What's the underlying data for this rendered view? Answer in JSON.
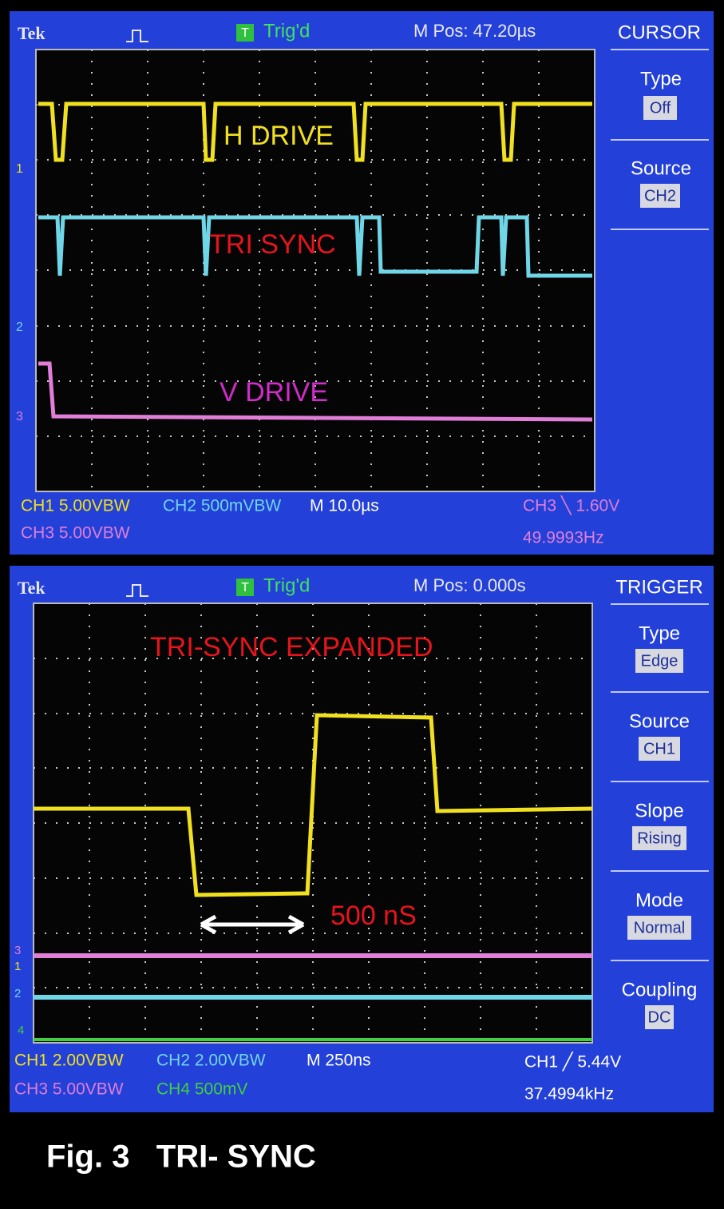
{
  "screens": [
    {
      "header": {
        "brand": "Tek",
        "trigger_icon": "T",
        "trigger_state": "Trig'd",
        "position": "M Pos: 47.20µs"
      },
      "menu": {
        "title": "CURSOR",
        "items": [
          {
            "label": "Type",
            "value": "Off"
          },
          {
            "label": "Source",
            "value": "CH2"
          }
        ]
      },
      "annotations": [
        "H DRIVE",
        "TRI SYNC",
        "V DRIVE"
      ],
      "channel_markers": [
        "1",
        "2",
        "3"
      ],
      "status": {
        "ch_a": "CH1  5.00VBW",
        "ch_b": "CH2  500mVBW",
        "timebase": "M 10.0µs",
        "trigger": "CH3 ╲ 1.60V",
        "ch_c": "CH3  5.00VBW",
        "frequency": "49.9993Hz"
      }
    },
    {
      "header": {
        "brand": "Tek",
        "trigger_icon": "T",
        "trigger_state": "Trig'd",
        "position": "M Pos: 0.000s"
      },
      "menu": {
        "title": "TRIGGER",
        "items": [
          {
            "label": "Type",
            "value": "Edge"
          },
          {
            "label": "Source",
            "value": "CH1"
          },
          {
            "label": "Slope",
            "value": "Rising"
          },
          {
            "label": "Mode",
            "value": "Normal"
          },
          {
            "label": "Coupling",
            "value": "DC"
          }
        ]
      },
      "annotations": [
        "TRI-SYNC EXPANDED",
        "500 nS"
      ],
      "channel_markers": [
        "3",
        "1",
        "2",
        "4"
      ],
      "status": {
        "ch_a": "CH1  2.00VBW",
        "ch_b": "CH2  2.00VBW",
        "timebase": "M 250ns",
        "trigger": "CH1 ╱ 5.44V",
        "ch_c": "CH3  5.00VBW",
        "ch_d": "CH4  500mV",
        "frequency": "37.4994kHz"
      }
    }
  ],
  "caption": "Fig. 3   TRI- SYNC"
}
